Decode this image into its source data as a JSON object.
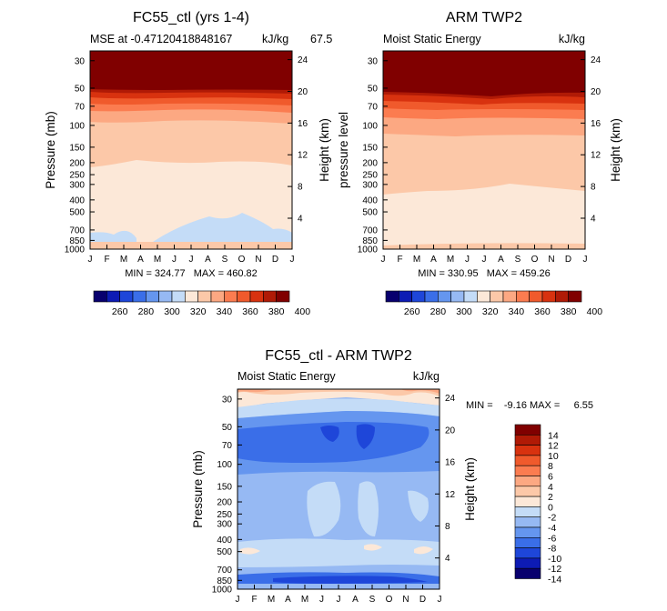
{
  "chart_data": [
    {
      "type": "contour",
      "title": "FC55_ctl (yrs 1-4)",
      "subtitle_left": "MSE at -0.47120418848167",
      "subtitle_right": "67.5",
      "subtitle_tail": "kJ/kg",
      "ylabel": "Pressure (mb)",
      "y2label": "Height (km)",
      "x_ticks": [
        "J",
        "F",
        "M",
        "A",
        "M",
        "J",
        "J",
        "A",
        "S",
        "O",
        "N",
        "D",
        "J"
      ],
      "y_ticks": [
        "30",
        "50",
        "70",
        "100",
        "150",
        "200",
        "250",
        "300",
        "400",
        "500",
        "700",
        "850",
        "1000"
      ],
      "y2_ticks": [
        "24",
        "20",
        "16",
        "12",
        "8",
        "4"
      ],
      "y_scale": "log",
      "ylim": [
        1000,
        25
      ],
      "stats": "MIN = 324.77   MAX = 460.82",
      "min": 324.77,
      "max": 460.82
    },
    {
      "type": "contour",
      "title": "ARM TWP2",
      "subtitle_left": "Moist Static Energy",
      "subtitle_right": "kJ/kg",
      "ylabel": "pressure level",
      "y2label": "Height (km)",
      "x_ticks": [
        "J",
        "F",
        "M",
        "A",
        "M",
        "J",
        "J",
        "A",
        "S",
        "O",
        "N",
        "D",
        "J"
      ],
      "y_ticks": [
        "30",
        "50",
        "70",
        "100",
        "150",
        "200",
        "250",
        "300",
        "400",
        "500",
        "700",
        "850",
        "1000"
      ],
      "y2_ticks": [
        "24",
        "20",
        "16",
        "12",
        "8",
        "4"
      ],
      "y_scale": "log",
      "ylim": [
        1000,
        25
      ],
      "stats": "MIN = 330.95   MAX = 459.26",
      "min": 330.95,
      "max": 459.26
    },
    {
      "type": "contour",
      "title": "FC55_ctl - ARM TWP2",
      "subtitle_left": "Moist Static Energy",
      "subtitle_right": "kJ/kg",
      "ylabel": "Pressure (mb)",
      "y2label": "Height (km)",
      "x_ticks": [
        "J",
        "F",
        "M",
        "A",
        "M",
        "J",
        "J",
        "A",
        "S",
        "O",
        "N",
        "D",
        "J"
      ],
      "y_ticks": [
        "30",
        "50",
        "70",
        "100",
        "150",
        "200",
        "250",
        "300",
        "400",
        "500",
        "700",
        "850",
        "1000"
      ],
      "y2_ticks": [
        "24",
        "20",
        "16",
        "12",
        "8",
        "4"
      ],
      "y_scale": "log",
      "ylim": [
        1000,
        25
      ],
      "stats": "MIN =    -9.16 MAX =     6.55",
      "min": -9.16,
      "max": 6.55
    }
  ],
  "colorbar_top": {
    "labels": [
      "260",
      "280",
      "300",
      "320",
      "340",
      "360",
      "380",
      "400"
    ],
    "colors": [
      "#08006e",
      "#0d1bb4",
      "#1e46d9",
      "#3a6ee8",
      "#6596ef",
      "#96b9f3",
      "#c4dcf7",
      "#fce8d8",
      "#fcc8a8",
      "#fca882",
      "#fb7c50",
      "#f05a2c",
      "#d8320f",
      "#b01a06",
      "#800000"
    ]
  },
  "colorbar_diff": {
    "labels": [
      "14",
      "12",
      "10",
      "8",
      "6",
      "4",
      "2",
      "0",
      "-2",
      "-4",
      "-6",
      "-8",
      "-10",
      "-12",
      "-14"
    ],
    "colors": [
      "#800000",
      "#b01a06",
      "#d8320f",
      "#f05a2c",
      "#fb7c50",
      "#fca882",
      "#fcc8a8",
      "#fce8d8",
      "#c4dcf7",
      "#96b9f3",
      "#6596ef",
      "#3a6ee8",
      "#1e46d9",
      "#0d1bb4",
      "#08006e"
    ]
  },
  "colors": {
    "mse_top": "#800000",
    "mse_dark_red": "#b01a06",
    "mse_red": "#d8320f",
    "mse_orange": "#f05a2c",
    "mse_light_orange": "#fb7c50",
    "mse_peach": "#fcc8a8",
    "mse_pale": "#fce8d8",
    "diff_light_blue": "#c4dcf7",
    "diff_mid_blue": "#96b9f3",
    "diff_blue": "#6596ef",
    "diff_strong_blue": "#3a6ee8",
    "diff_deep_blue": "#1e46d9"
  }
}
